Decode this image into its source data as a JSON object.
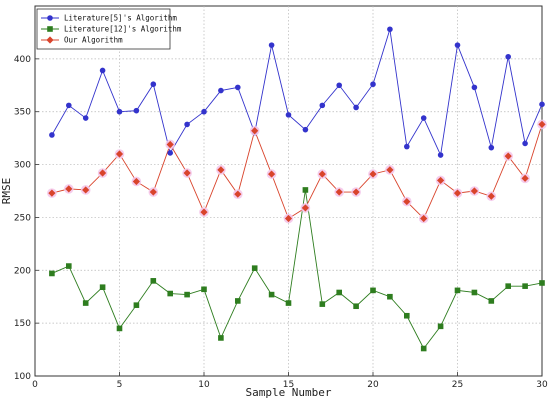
{
  "chart_data": {
    "type": "line",
    "xlabel": "Sample Number",
    "ylabel": "RMSE",
    "xlim": [
      0,
      30
    ],
    "ylim": [
      100,
      450
    ],
    "xticks": [
      0,
      5,
      10,
      15,
      20,
      25,
      30
    ],
    "yticks": [
      100,
      150,
      200,
      250,
      300,
      350,
      400
    ],
    "grid": true,
    "legend_position": "top-left",
    "x": [
      1,
      2,
      3,
      4,
      5,
      6,
      7,
      8,
      9,
      10,
      11,
      12,
      13,
      14,
      15,
      16,
      17,
      18,
      19,
      20,
      21,
      22,
      23,
      24,
      25,
      26,
      27,
      28,
      29,
      30
    ],
    "series": [
      {
        "name": "Literature[5]'s Algorithm",
        "color": "#3333cc",
        "marker": "circle",
        "values": [
          328,
          356,
          344,
          389,
          350,
          351,
          376,
          311,
          338,
          350,
          370,
          373,
          330,
          413,
          347,
          333,
          356,
          375,
          354,
          376,
          428,
          317,
          344,
          309,
          413,
          373,
          316,
          402,
          320,
          357
        ]
      },
      {
        "name": "Literature[12]'s Algorithm",
        "color": "#2e7d1f",
        "marker": "square",
        "values": [
          197,
          204,
          169,
          184,
          145,
          167,
          190,
          178,
          177,
          182,
          136,
          171,
          202,
          177,
          169,
          276,
          168,
          179,
          166,
          181,
          175,
          157,
          126,
          147,
          181,
          179,
          171,
          185,
          185,
          188
        ]
      },
      {
        "name": "Our Algorithm",
        "color": "#d9442c",
        "marker": "diamond",
        "values": [
          273,
          277,
          276,
          292,
          310,
          284,
          274,
          319,
          292,
          255,
          295,
          272,
          332,
          291,
          249,
          259,
          291,
          274,
          274,
          291,
          295,
          265,
          249,
          285,
          273,
          275,
          270,
          308,
          287,
          338
        ]
      }
    ]
  }
}
